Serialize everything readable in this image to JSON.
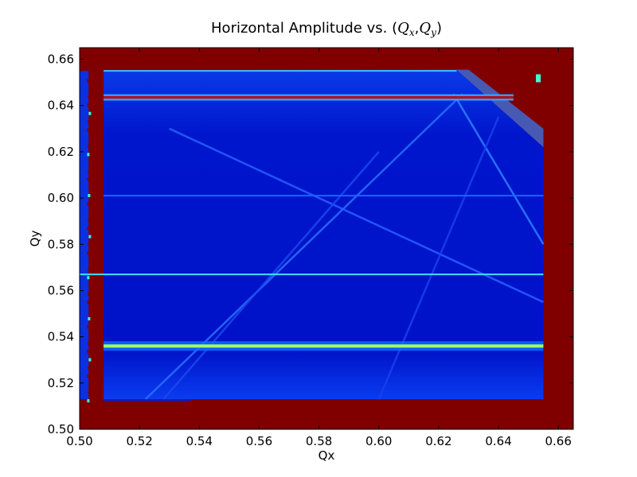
{
  "chart_data": {
    "type": "heatmap",
    "title": {
      "prefix": "Horizontal Amplitude vs. (",
      "qx_symbol": "Q",
      "qx_sub": "x",
      "separator": ",",
      "qy_symbol": "Q",
      "qy_sub": "y",
      "suffix": ")"
    },
    "xlabel": "Qx",
    "ylabel": "Qy",
    "xlim": [
      0.5,
      0.665
    ],
    "ylim": [
      0.5,
      0.665
    ],
    "xticks": [
      "0.50",
      "0.52",
      "0.54",
      "0.56",
      "0.58",
      "0.60",
      "0.62",
      "0.64",
      "0.66"
    ],
    "yticks": [
      "0.50",
      "0.52",
      "0.54",
      "0.56",
      "0.58",
      "0.60",
      "0.62",
      "0.64",
      "0.66"
    ],
    "colormap": "jet",
    "grid": false,
    "background_color": "#800000",
    "data_region": {
      "qx": [
        0.508,
        0.655
      ],
      "qy": [
        0.513,
        0.655
      ],
      "color": "#0010d8"
    },
    "data_region_cut_corner": [
      [
        0.626,
        0.6555
      ],
      [
        0.655,
        0.622
      ]
    ],
    "left_column": {
      "qx": [
        0.5,
        0.503
      ],
      "qy": [
        0.513,
        0.655
      ]
    },
    "horizontal_lines": [
      {
        "qy": 0.6435,
        "qx": [
          0.508,
          0.645
        ],
        "color": "#c00000"
      },
      {
        "qy": 0.567,
        "qx": [
          0.5,
          0.655
        ],
        "color": "#40e0ff"
      },
      {
        "qy": 0.536,
        "qx": [
          0.508,
          0.655
        ],
        "color": "#a0ff60"
      },
      {
        "qy": 0.601,
        "qx": [
          0.508,
          0.655
        ],
        "color": "#2060ff"
      },
      {
        "qy": 0.655,
        "qx": [
          0.508,
          0.626
        ],
        "color": "#40c0ff"
      }
    ],
    "diagonal_lines": [
      {
        "from": [
          0.522,
          0.513
        ],
        "to": [
          0.628,
          0.645
        ],
        "color": "#2a70ff"
      },
      {
        "from": [
          0.53,
          0.63
        ],
        "to": [
          0.655,
          0.555
        ],
        "color": "#2a60ff"
      },
      {
        "from": [
          0.528,
          0.513
        ],
        "to": [
          0.6,
          0.62
        ],
        "color": "#1d48f0"
      },
      {
        "from": [
          0.625,
          0.645
        ],
        "to": [
          0.655,
          0.58
        ],
        "color": "#3080ff"
      },
      {
        "from": [
          0.6,
          0.513
        ],
        "to": [
          0.64,
          0.635
        ],
        "color": "#1a40f0"
      }
    ],
    "colors": {
      "max": "#800000",
      "low": "#00008f",
      "mid": "#0040ff",
      "cyan": "#40ffff",
      "yellow": "#ffff00"
    }
  }
}
